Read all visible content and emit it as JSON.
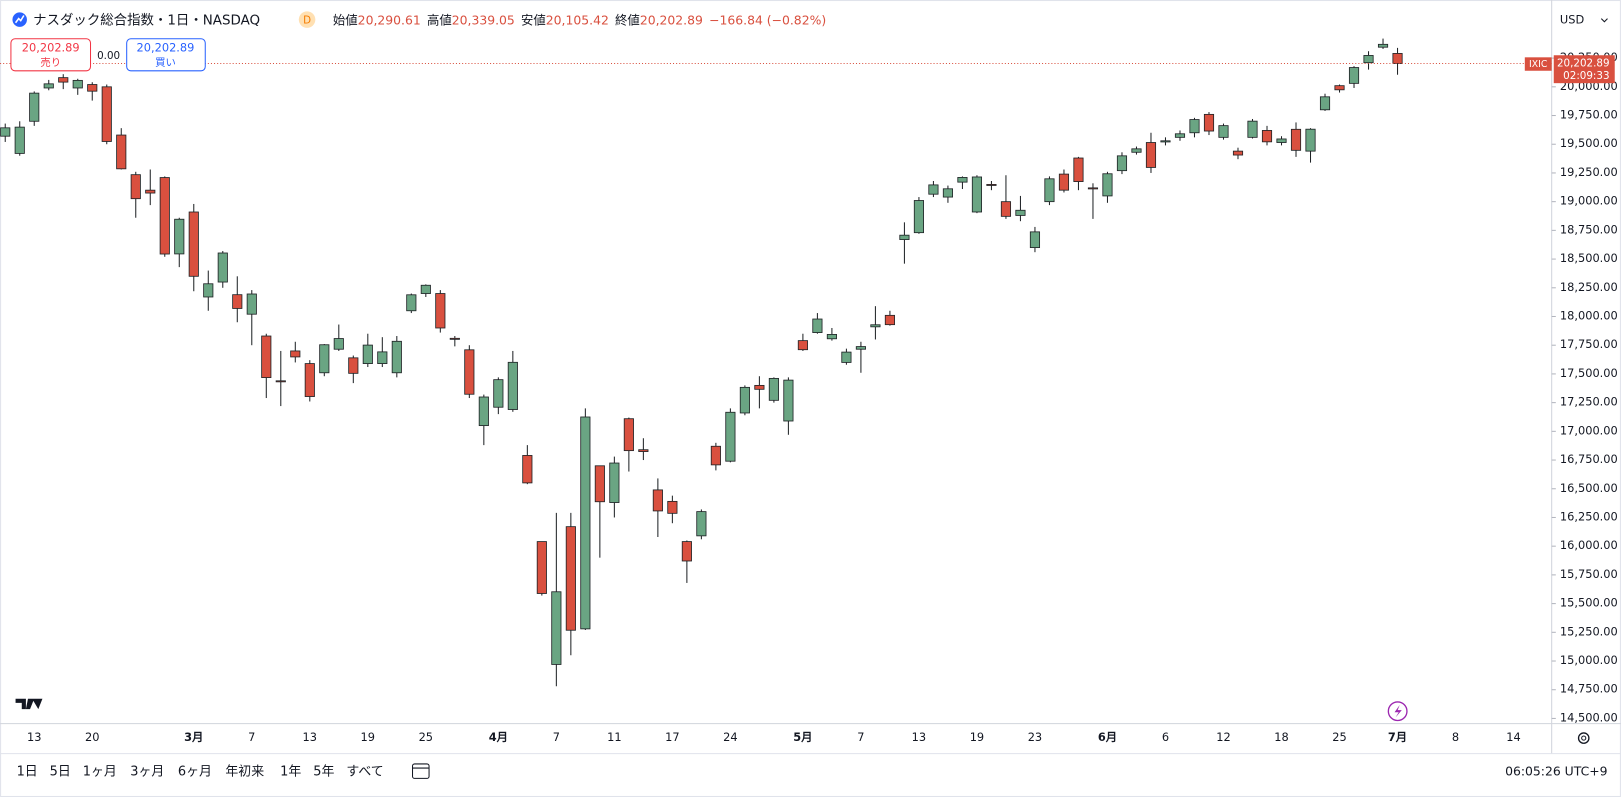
{
  "header": {
    "title": "ナスダック総合指数・1日・NASDAQ",
    "badge": "D",
    "open_label": "始値",
    "open": "20,290.61",
    "high_label": "高値",
    "high": "20,339.05",
    "low_label": "安値",
    "low": "20,105.42",
    "close_label": "終値",
    "close": "20,202.89",
    "change": "−166.84 (−0.82%)"
  },
  "trade": {
    "sell_price": "20,202.89",
    "sell_label": "売り",
    "spread": "0.00",
    "buy_price": "20,202.89",
    "buy_label": "買い"
  },
  "currency": "USD",
  "price_tag": {
    "symbol": "IXIC",
    "price": "20,202.89",
    "countdown": "02:09:33"
  },
  "toolbar": {
    "ranges": [
      "1日",
      "5日",
      "1ヶ月",
      "3ヶ月",
      "6ヶ月",
      "年初来",
      "1年",
      "5年",
      "すべて"
    ],
    "clock": "06:05:26 UTC+9"
  },
  "chart_data": {
    "type": "candlestick",
    "up_color": "#6aa583",
    "down_color": "#d9503f",
    "wick_color": "#1f2326",
    "price_line_color": "#d9503f",
    "grid": false,
    "categories": [
      null,
      null,
      "13",
      null,
      null,
      null,
      "20",
      null,
      null,
      null,
      null,
      null,
      null,
      "3月",
      null,
      null,
      null,
      "7",
      null,
      null,
      null,
      "13",
      null,
      null,
      null,
      "19",
      null,
      null,
      null,
      "25",
      null,
      null,
      null,
      null,
      "4月",
      null,
      null,
      null,
      "7",
      null,
      null,
      null,
      "11",
      null,
      null,
      null,
      "17",
      null,
      null,
      null,
      "24",
      null,
      null,
      null,
      null,
      "5月",
      null,
      null,
      null,
      "7",
      null,
      null,
      null,
      "13",
      null,
      null,
      null,
      "19",
      null,
      null,
      null,
      "23",
      null,
      null,
      null,
      null,
      "6月",
      null,
      null,
      null,
      "6",
      null,
      null,
      null,
      "12",
      null,
      null,
      null,
      "18",
      null,
      null,
      null,
      "25",
      null,
      null,
      null,
      "7月",
      null,
      null,
      null,
      "8",
      null,
      null,
      null,
      "14"
    ],
    "open": [
      19570,
      19420,
      19700,
      19990,
      20080,
      19990,
      20020,
      20000,
      19580,
      19235,
      19100,
      19210,
      18545,
      18910,
      18170,
      18300,
      18190,
      18020,
      17830,
      17440,
      17700,
      17590,
      17510,
      17715,
      17640,
      17590,
      17590,
      17510,
      18050,
      18200,
      18200,
      17810,
      17710,
      17050,
      17210,
      17190,
      16790,
      16040,
      14970,
      16170,
      15280,
      16700,
      16380,
      17110,
      16840,
      16490,
      16390,
      16040,
      16090,
      16870,
      16740,
      17160,
      17400,
      17270,
      17090,
      17790,
      17860,
      17806,
      17600,
      17715,
      17910,
      18010,
      18670,
      18730,
      19065,
      19040,
      19170,
      18910,
      19150,
      19000,
      18880,
      18600,
      19000,
      19240,
      19380,
      19120,
      19050,
      19270,
      19430,
      19515,
      19520,
      19560,
      19600,
      19760,
      19560,
      19440,
      19560,
      19620,
      19515,
      19630,
      19440,
      19800,
      20010,
      20030,
      20210,
      20345,
      20290.61,
      null,
      null,
      null,
      null,
      null,
      null,
      null,
      null
    ],
    "high": [
      19680,
      19700,
      19960,
      20060,
      20110,
      20070,
      20040,
      20020,
      19640,
      19260,
      19280,
      19220,
      18860,
      18980,
      18400,
      18570,
      18350,
      18230,
      17850,
      17700,
      17780,
      17620,
      17760,
      17930,
      17660,
      17850,
      17820,
      17830,
      18200,
      18280,
      18230,
      17830,
      17750,
      17320,
      17470,
      17700,
      16880,
      16040,
      16290,
      16290,
      17200,
      16700,
      16780,
      17120,
      16940,
      16590,
      16440,
      16050,
      16320,
      16900,
      17200,
      17400,
      17480,
      17470,
      17470,
      17850,
      18030,
      17900,
      17720,
      17780,
      18090,
      18050,
      18820,
      19040,
      19180,
      19140,
      19220,
      19230,
      19180,
      19230,
      19050,
      18780,
      19220,
      19280,
      19390,
      19160,
      19260,
      19430,
      19480,
      19600,
      19560,
      19620,
      19730,
      19780,
      19680,
      19470,
      19720,
      19660,
      19570,
      19690,
      19640,
      19940,
      20020,
      20180,
      20310,
      20420,
      20339.05,
      null,
      null,
      null,
      null,
      null,
      null,
      null,
      null
    ],
    "low": [
      19520,
      19400,
      19660,
      19970,
      19980,
      19930,
      19880,
      19500,
      19280,
      18860,
      18970,
      18520,
      18430,
      18220,
      18050,
      18250,
      17950,
      17750,
      17290,
      17220,
      17600,
      17260,
      17480,
      17700,
      17420,
      17560,
      17560,
      17470,
      18030,
      18170,
      17860,
      17740,
      17290,
      16880,
      17150,
      17170,
      16540,
      15570,
      14780,
      15050,
      15270,
      15900,
      16250,
      16650,
      16750,
      16080,
      16200,
      15680,
      16060,
      16660,
      16730,
      17140,
      17200,
      17250,
      16970,
      17700,
      17850,
      17790,
      17580,
      17510,
      17800,
      17920,
      18460,
      18720,
      19040,
      18990,
      19110,
      18900,
      19100,
      18850,
      18830,
      18560,
      18970,
      19080,
      19100,
      18850,
      18990,
      19240,
      19410,
      19250,
      19490,
      19530,
      19560,
      19580,
      19540,
      19370,
      19550,
      19490,
      19490,
      19390,
      19340,
      19790,
      19950,
      19990,
      20150,
      20330,
      20105.42,
      null,
      null,
      null,
      null,
      null,
      null,
      null,
      null
    ],
    "close": [
      19643,
      19649,
      19945,
      20026,
      20041,
      20056,
      19962,
      19524,
      19286,
      19026,
      19075,
      18544,
      18847,
      18350,
      18285,
      18553,
      18070,
      18196,
      17468,
      17436,
      17648,
      17303,
      17754,
      17808,
      17505,
      17751,
      17692,
      17784,
      18189,
      18272,
      17900,
      17805,
      17323,
      17299,
      17450,
      17601,
      16551,
      15588,
      15603,
      15268,
      17125,
      16387,
      16724,
      16832,
      16824,
      16307,
      16286,
      15871,
      16301,
      16708,
      17166,
      17383,
      17366,
      17461,
      17446,
      17711,
      17978,
      17844,
      17690,
      17738,
      17928,
      17929,
      18708,
      19010,
      19146,
      19112,
      19211,
      19215,
      19143,
      18872,
      18925,
      18737,
      19199,
      19100,
      19175,
      19114,
      19243,
      19399,
      19460,
      19298,
      19530,
      19591,
      19715,
      19615,
      19662,
      19406,
      19701,
      19521,
      19546,
      19447,
      19631,
      19913,
      19974,
      20168,
      20273,
      20370,
      20202.89,
      null,
      null,
      null,
      null,
      null,
      null,
      null,
      null
    ],
    "ylim": [
      14455,
      20756
    ],
    "yticks": [
      {
        "value": 14500,
        "label": "14,500.00"
      },
      {
        "value": 14750,
        "label": "14,750.00"
      },
      {
        "value": 15000,
        "label": "15,000.00"
      },
      {
        "value": 15250,
        "label": "15,250.00"
      },
      {
        "value": 15500,
        "label": "15,500.00"
      },
      {
        "value": 15750,
        "label": "15,750.00"
      },
      {
        "value": 16000,
        "label": "16,000.00"
      },
      {
        "value": 16250,
        "label": "16,250.00"
      },
      {
        "value": 16500,
        "label": "16,500.00"
      },
      {
        "value": 16750,
        "label": "16,750.00"
      },
      {
        "value": 17000,
        "label": "17,000.00"
      },
      {
        "value": 17250,
        "label": "17,250.00"
      },
      {
        "value": 17500,
        "label": "17,500.00"
      },
      {
        "value": 17750,
        "label": "17,750.00"
      },
      {
        "value": 18000,
        "label": "18,000.00"
      },
      {
        "value": 18250,
        "label": "18,250.00"
      },
      {
        "value": 18500,
        "label": "18,500.00"
      },
      {
        "value": 18750,
        "label": "18,750.00"
      },
      {
        "value": 19000,
        "label": "19,000.00"
      },
      {
        "value": 19250,
        "label": "19,250.00"
      },
      {
        "value": 19500,
        "label": "19,500.00"
      },
      {
        "value": 19750,
        "label": "19,750.00"
      },
      {
        "value": 20000,
        "label": "20,000.00"
      },
      {
        "value": 20250,
        "label": "20,250.00"
      }
    ]
  }
}
